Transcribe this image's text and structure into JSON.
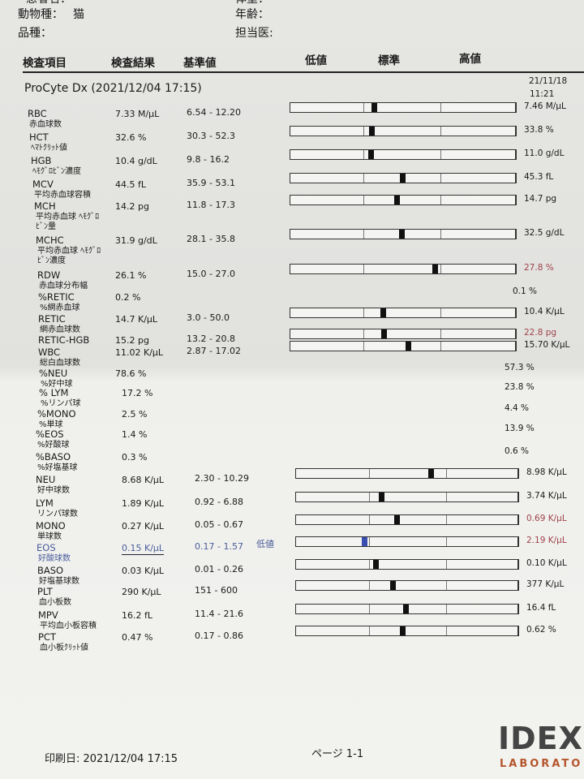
{
  "patient": {
    "name_label": "患者名：",
    "weight_label": "体重：",
    "species_label": "動物種：",
    "species": "猫",
    "age_label": "年齢：",
    "breed_label": "品種：",
    "doctor_label": "担当医:"
  },
  "columns": {
    "item": "検査項目",
    "result": "検査結果",
    "reference": "基準値",
    "low": "低値",
    "normal": "標準",
    "high": "高値"
  },
  "run": {
    "title": "ProCyte Dx (2021/12/04 17:15)",
    "prior_date": "21/11/18",
    "prior_time": "11:21"
  },
  "rows": [
    {
      "code": "RBC",
      "jp": "赤血球数",
      "result": "7.33 M/µL",
      "range": "6.54 - 12.20",
      "lo": 6.54,
      "hi": 12.2,
      "v": 7.33,
      "prior": "7.46 M/µL"
    },
    {
      "code": "HCT",
      "jp": "ﾍﾏﾄｸﾘｯﾄ値",
      "result": "32.6 %",
      "range": "30.3 - 52.3",
      "lo": 30.3,
      "hi": 52.3,
      "v": 32.6,
      "prior": "33.8 %"
    },
    {
      "code": "HGB",
      "jp": "ﾍﾓｸﾞﾛﾋﾞﾝ濃度",
      "result": "10.4 g/dL",
      "range": "9.8 - 16.2",
      "lo": 9.8,
      "hi": 16.2,
      "v": 10.4,
      "prior": "11.0 g/dL"
    },
    {
      "code": "MCV",
      "jp": "平均赤血球容積",
      "result": "44.5 fL",
      "range": "35.9 - 53.1",
      "lo": 35.9,
      "hi": 53.1,
      "v": 44.5,
      "prior": "45.3 fL"
    },
    {
      "code": "MCH",
      "jp": "平均赤血球 ﾍﾓｸﾞﾛﾋﾞﾝ量",
      "result": "14.2 pg",
      "range": "11.8 - 17.3",
      "lo": 11.8,
      "hi": 17.3,
      "v": 14.2,
      "prior": "14.7 pg"
    },
    {
      "code": "MCHC",
      "jp": "平均赤血球 ﾍﾓｸﾞﾛﾋﾞﾝ濃度",
      "result": "31.9 g/dL",
      "range": "28.1 - 35.8",
      "lo": 28.1,
      "hi": 35.8,
      "v": 31.9,
      "prior": "32.5 g/dL"
    },
    {
      "code": "RDW",
      "jp": "赤血球分布幅",
      "result": "26.1 %",
      "range": "15.0 - 27.0",
      "lo": 15.0,
      "hi": 27.0,
      "v": 26.1,
      "prior": "27.8 %",
      "prior_flag": "high"
    },
    {
      "code": "%RETIC",
      "jp": "%網赤血球",
      "result": "0.2 %",
      "range": "",
      "prior": "0.1 %"
    },
    {
      "code": "RETIC",
      "jp": "網赤血球数",
      "result": "14.7 K/µL",
      "range": "3.0 - 50.0",
      "lo": 3.0,
      "hi": 50.0,
      "v": 14.7,
      "prior": "10.4 K/µL"
    },
    {
      "code": "RETIC-HGB",
      "jp": "",
      "result": "15.2 pg",
      "range": "13.2 - 20.8",
      "lo": 13.2,
      "hi": 20.8,
      "v": 15.2,
      "prior": "22.8 pg",
      "prior_flag": "high"
    },
    {
      "code": "WBC",
      "jp": "総白血球数",
      "result": "11.02 K/µL",
      "range": "2.87 - 17.02",
      "lo": 2.87,
      "hi": 17.02,
      "v": 11.02,
      "prior": "15.70 K/µL"
    },
    {
      "code": "%NEU",
      "jp": "%好中球",
      "result": "78.6 %",
      "range": "",
      "prior": "57.3 %"
    },
    {
      "code": "% LYM",
      "jp": "%リンパ球",
      "result": "17.2 %",
      "range": "",
      "prior": "23.8 %"
    },
    {
      "code": "%MONO",
      "jp": "%単球",
      "result": "2.5 %",
      "range": "",
      "prior": "4.4 %"
    },
    {
      "code": "%EOS",
      "jp": "%好酸球",
      "result": "1.4 %",
      "range": "",
      "prior": "13.9 %"
    },
    {
      "code": "%BASO",
      "jp": "%好塩基球",
      "result": "0.3 %",
      "range": "",
      "prior": "0.6 %"
    },
    {
      "code": "NEU",
      "jp": "好中球数",
      "result": "8.68 K/µL",
      "range": "2.30 - 10.29",
      "lo": 2.3,
      "hi": 10.29,
      "v": 8.68,
      "prior": "8.98 K/µL"
    },
    {
      "code": "LYM",
      "jp": "リンパ球数",
      "result": "1.89 K/µL",
      "range": "0.92 - 6.88",
      "lo": 0.92,
      "hi": 6.88,
      "v": 1.89,
      "prior": "3.74 K/µL"
    },
    {
      "code": "MONO",
      "jp": "単球数",
      "result": "0.27 K/µL",
      "range": "0.05 - 0.67",
      "lo": 0.05,
      "hi": 0.67,
      "v": 0.27,
      "prior": "0.69 K/µL",
      "prior_flag": "high"
    },
    {
      "code": "EOS",
      "jp": "好酸球数",
      "result": "0.15 K/µL",
      "range": "0.17 - 1.57",
      "lo": 0.17,
      "hi": 1.57,
      "v": 0.15,
      "prior": "2.19 K/µL",
      "prior_flag": "high",
      "flag": "low",
      "flag_label": "低値"
    },
    {
      "code": "BASO",
      "jp": "好塩基球数",
      "result": "0.03 K/µL",
      "range": "0.01 - 0.26",
      "lo": 0.01,
      "hi": 0.26,
      "v": 0.03,
      "prior": "0.10 K/µL"
    },
    {
      "code": "PLT",
      "jp": "血小板数",
      "result": "290 K/µL",
      "range": "151 - 600",
      "lo": 151,
      "hi": 600,
      "v": 290,
      "prior": "377 K/µL"
    },
    {
      "code": "MPV",
      "jp": "平均血小板容積",
      "result": "16.2 fL",
      "range": "11.4 - 21.6",
      "lo": 11.4,
      "hi": 21.6,
      "v": 16.2,
      "prior": "16.4 fL"
    },
    {
      "code": "PCT",
      "jp": "血小板ｸﾘｯﾄ値",
      "result": "0.47 %",
      "range": "0.17 - 0.86",
      "lo": 0.17,
      "hi": 0.86,
      "v": 0.47,
      "prior": "0.62 %"
    }
  ],
  "colors": {
    "low": "#3a4fb0",
    "high": "#a0444a",
    "normal_marker": "#111111"
  },
  "footer": {
    "print_date": "印刷日: 2021/12/04 17:15",
    "page": "ページ 1-1",
    "logo": "IDEXX",
    "logo_sub": "LABORATORIES"
  }
}
